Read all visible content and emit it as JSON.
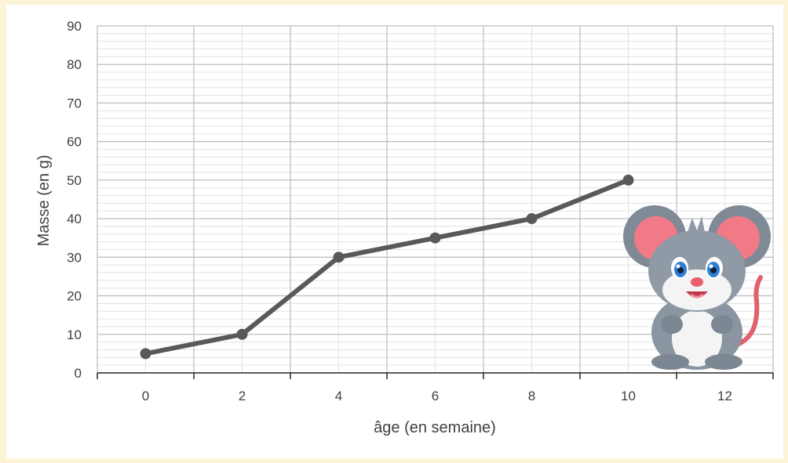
{
  "chart_data": {
    "type": "line",
    "title": "",
    "xlabel": "âge (en semaine)",
    "ylabel": "Masse (en g)",
    "x": [
      0,
      2,
      4,
      6,
      8,
      10
    ],
    "series": [
      {
        "values": [
          5,
          10,
          30,
          35,
          40,
          50
        ]
      }
    ],
    "x_categories": [
      "0",
      "2",
      "4",
      "6",
      "8",
      "10",
      "12"
    ],
    "y_ticks": [
      "0",
      "10",
      "20",
      "30",
      "40",
      "50",
      "60",
      "70",
      "80",
      "90"
    ],
    "ylim": [
      0,
      90
    ],
    "grid": true,
    "line_color": "#595959",
    "grid_color_major": "#bfbfbf",
    "grid_color_minor": "#e3e3e3"
  },
  "decoration": {
    "mascot": "cartoon-mouse-illustration"
  }
}
